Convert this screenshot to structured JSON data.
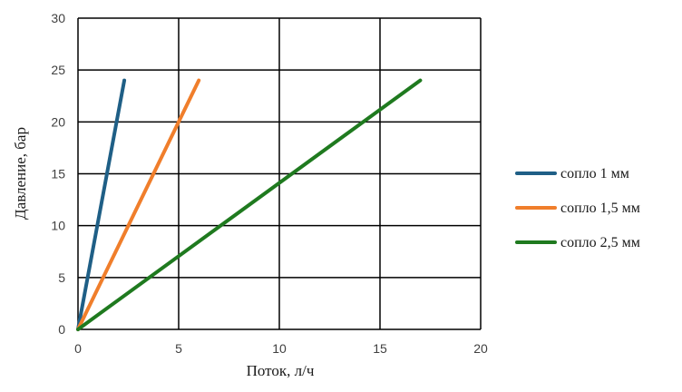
{
  "chart_data": {
    "type": "line",
    "title": "",
    "xlabel": "Поток, л/ч",
    "ylabel": "Давление, бар",
    "xlim": [
      0,
      20
    ],
    "ylim": [
      0,
      30
    ],
    "x_ticks": [
      0,
      5,
      10,
      15,
      20
    ],
    "y_ticks": [
      0,
      5,
      10,
      15,
      20,
      25,
      30
    ],
    "grid": true,
    "legend_position": "right",
    "series": [
      {
        "name": "сопло 1 мм",
        "color": "#1f5f86",
        "x": [
          0,
          2.3
        ],
        "y": [
          0,
          24
        ]
      },
      {
        "name": "сопло 1,5 мм",
        "color": "#f07e2b",
        "x": [
          0,
          6
        ],
        "y": [
          0,
          24
        ]
      },
      {
        "name": "сопло 2,5 мм",
        "color": "#1f7a1f",
        "x": [
          0,
          17
        ],
        "y": [
          0,
          24
        ]
      }
    ]
  }
}
